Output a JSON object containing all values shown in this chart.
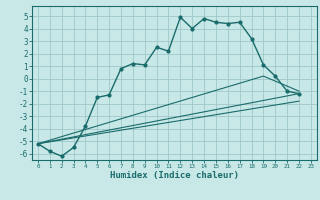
{
  "xlabel": "Humidex (Indice chaleur)",
  "background_color": "#c8e8e8",
  "grid_color": "#a0c8c8",
  "line_color": "#1a6b6b",
  "xlim": [
    -0.5,
    23.5
  ],
  "ylim": [
    -6.5,
    5.8
  ],
  "xticks": [
    0,
    1,
    2,
    3,
    4,
    5,
    6,
    7,
    8,
    9,
    10,
    11,
    12,
    13,
    14,
    15,
    16,
    17,
    18,
    19,
    20,
    21,
    22,
    23
  ],
  "yticks": [
    -6,
    -5,
    -4,
    -3,
    -2,
    -1,
    0,
    1,
    2,
    3,
    4,
    5
  ],
  "line1_x": [
    0,
    1,
    2,
    3,
    4,
    5,
    6,
    7,
    8,
    9,
    10,
    11,
    12,
    13,
    14,
    15,
    16,
    17,
    18,
    19,
    20,
    21,
    22
  ],
  "line1_y": [
    -5.2,
    -5.8,
    -6.2,
    -5.5,
    -3.8,
    -1.5,
    -1.3,
    0.8,
    1.2,
    1.1,
    2.5,
    2.2,
    4.9,
    4.0,
    4.8,
    4.5,
    4.4,
    4.5,
    3.2,
    1.1,
    0.2,
    -1.0,
    -1.2
  ],
  "line2_x": [
    0,
    19,
    22
  ],
  "line2_y": [
    -5.2,
    0.2,
    -1.0
  ],
  "line3_x": [
    0,
    22
  ],
  "line3_y": [
    -5.2,
    -1.2
  ],
  "line4_x": [
    0,
    22
  ],
  "line4_y": [
    -5.2,
    -1.8
  ]
}
